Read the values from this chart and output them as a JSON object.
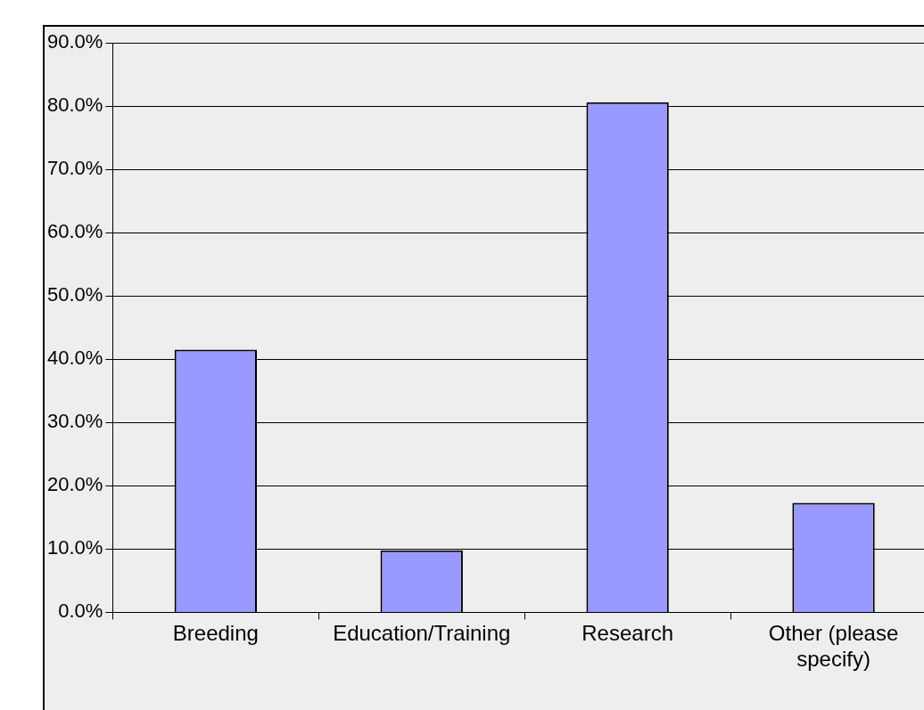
{
  "chart_data": {
    "type": "bar",
    "categories": [
      "Breeding",
      "Education/Training",
      "Research",
      "Other (please specify)"
    ],
    "values": [
      41.5,
      9.8,
      80.6,
      17.3
    ],
    "color": "#9999ff",
    "ylim": [
      0,
      90
    ],
    "yticks": [
      {
        "value": 0,
        "label": "0.0%"
      },
      {
        "value": 10,
        "label": "10.0%"
      },
      {
        "value": 20,
        "label": "20.0%"
      },
      {
        "value": 30,
        "label": "30.0%"
      },
      {
        "value": 40,
        "label": "40.0%"
      },
      {
        "value": 50,
        "label": "50.0%"
      },
      {
        "value": 60,
        "label": "60.0%"
      },
      {
        "value": 70,
        "label": "70.0%"
      },
      {
        "value": 80,
        "label": "80.0%"
      },
      {
        "value": 90,
        "label": "90.0%"
      }
    ],
    "grid": "y"
  }
}
